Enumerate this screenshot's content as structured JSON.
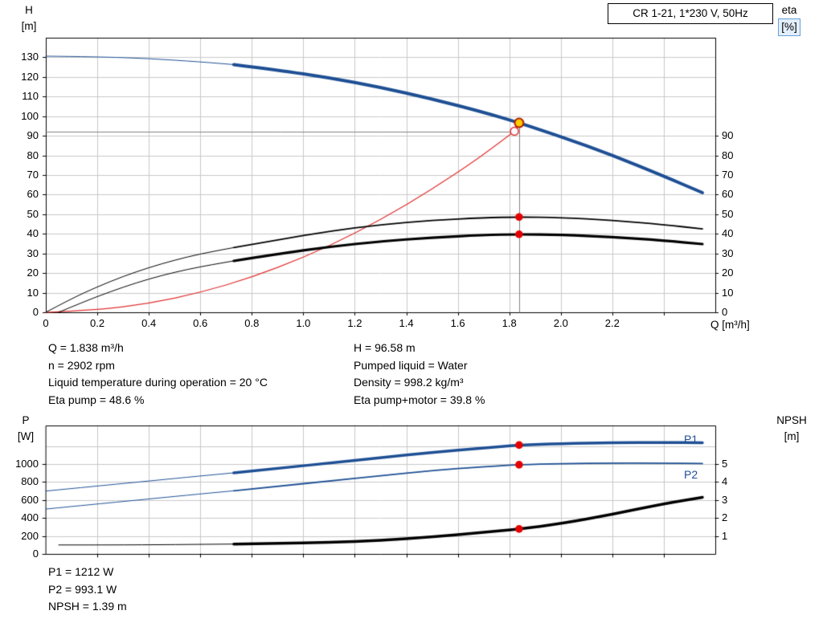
{
  "title_box": "CR 1-21, 1*230 V, 50Hz",
  "axes": {
    "top": {
      "left_1": "H",
      "left_2": "[m]",
      "right_1": "eta",
      "right_2": "[%]",
      "x": "Q [m³/h]"
    },
    "bottom": {
      "left_1": "P",
      "left_2": "[W]",
      "right_1": "NPSH",
      "right_2": "[m]",
      "p1": "P1",
      "p2": "P2"
    }
  },
  "info": {
    "left": [
      "Q = 1.838 m³/h",
      "n = 2902 rpm",
      "Liquid temperature during operation = 20 °C",
      "Eta pump = 48.6 %"
    ],
    "right": [
      "H = 96.58 m",
      "Pumped liquid = Water",
      "Density = 998.2 kg/m³",
      "Eta pump+motor = 39.8 %"
    ],
    "bottom": [
      "P1 = 1212 W",
      "P2 = 993.1 W",
      "NPSH = 1.39 m"
    ]
  },
  "colors": {
    "curve_blue": "#1e4f94",
    "curve_black": "#000000",
    "curve_red": "#e03030",
    "duty_fill": "#ffcc00",
    "duty_stroke": "#b22000",
    "dot_red": "#e40000",
    "grid": "#c9c9c9",
    "crosshair": "#808080",
    "label_blue": "#1e4f94"
  },
  "chart_data": [
    {
      "type": "line",
      "title": "CR 1-21, 1*230 V, 50Hz — QH and efficiency curves",
      "x": {
        "label": "Q [m³/h]",
        "min": 0,
        "max": 2.6,
        "grid_step": 0.2,
        "tick_labels": [
          "0",
          "0.2",
          "0.4",
          "0.6",
          "0.8",
          "1.0",
          "1.2",
          "1.4",
          "1.6",
          "1.8",
          "2.0",
          "2.2"
        ]
      },
      "y_left": {
        "label": "H [m]",
        "min": 0,
        "max": 140,
        "grid_step": 10,
        "tick_labels": [
          "0",
          "10",
          "20",
          "30",
          "40",
          "50",
          "60",
          "70",
          "80",
          "90",
          "100",
          "110",
          "120",
          "130"
        ]
      },
      "y_right": {
        "label": "eta [%]",
        "min": 0,
        "max": 140,
        "tick_labels": [
          "0",
          "10",
          "20",
          "30",
          "40",
          "50",
          "60",
          "70",
          "80",
          "90"
        ]
      },
      "grid": true,
      "legend": "none",
      "series": [
        {
          "name": "system-curve",
          "axis": "left",
          "color": "#e03030",
          "width": 1.2,
          "points": [
            [
              0,
              0
            ],
            [
              0.2,
              1.1
            ],
            [
              0.4,
              4.5
            ],
            [
              0.6,
              10.0
            ],
            [
              0.8,
              17.8
            ],
            [
              1.0,
              27.9
            ],
            [
              1.2,
              40.1
            ],
            [
              1.4,
              54.6
            ],
            [
              1.6,
              71.3
            ],
            [
              1.7,
              80.5
            ],
            [
              1.82,
              92.3
            ]
          ]
        },
        {
          "name": "eta-pump",
          "axis": "right",
          "color": "#000000",
          "thin": 1,
          "thick": 1.8,
          "thick_from": 0.73,
          "points": [
            [
              0,
              0
            ],
            [
              0.1,
              7
            ],
            [
              0.2,
              13
            ],
            [
              0.3,
              18.3
            ],
            [
              0.4,
              22.8
            ],
            [
              0.5,
              26.6
            ],
            [
              0.6,
              29.8
            ],
            [
              0.73,
              33.0
            ],
            [
              0.9,
              36.9
            ],
            [
              1.1,
              41.3
            ],
            [
              1.3,
              44.7
            ],
            [
              1.5,
              46.9
            ],
            [
              1.7,
              48.2
            ],
            [
              1.838,
              48.6
            ],
            [
              2.0,
              48.3
            ],
            [
              2.2,
              46.9
            ],
            [
              2.4,
              44.7
            ],
            [
              2.55,
              42.5
            ]
          ]
        },
        {
          "name": "eta-pump-motor",
          "axis": "right",
          "color": "#000000",
          "thin": 1,
          "thick": 3.2,
          "thick_from": 0.73,
          "points": [
            [
              0.05,
              0
            ],
            [
              0.15,
              5.5
            ],
            [
              0.25,
              10.5
            ],
            [
              0.35,
              15
            ],
            [
              0.45,
              18.8
            ],
            [
              0.55,
              21.9
            ],
            [
              0.65,
              24.4
            ],
            [
              0.73,
              26.2
            ],
            [
              0.9,
              29.8
            ],
            [
              1.1,
              33.4
            ],
            [
              1.3,
              36.2
            ],
            [
              1.5,
              38.1
            ],
            [
              1.7,
              39.4
            ],
            [
              1.838,
              39.8
            ],
            [
              2.0,
              39.5
            ],
            [
              2.2,
              38.4
            ],
            [
              2.4,
              36.6
            ],
            [
              2.55,
              34.8
            ]
          ]
        },
        {
          "name": "head-curve",
          "axis": "left",
          "color": "#1e4f94",
          "thin": 1,
          "thick": 4,
          "thick_from": 0.73,
          "points": [
            [
              0,
              130.6
            ],
            [
              0.2,
              130.3
            ],
            [
              0.4,
              129.4
            ],
            [
              0.6,
              127.7
            ],
            [
              0.73,
              126.3
            ],
            [
              0.9,
              123.5
            ],
            [
              1.1,
              119.6
            ],
            [
              1.3,
              114.7
            ],
            [
              1.5,
              108.8
            ],
            [
              1.7,
              102.0
            ],
            [
              1.838,
              96.58
            ],
            [
              2.0,
              89.6
            ],
            [
              2.2,
              80.1
            ],
            [
              2.4,
              69.4
            ],
            [
              2.55,
              61.0
            ]
          ]
        }
      ],
      "crosshair": {
        "q": 1.838,
        "top": 96.58,
        "h_line": 92.3,
        "h_line_end_q": 1.82
      },
      "markers": [
        {
          "name": "requested-duty-point",
          "q": 1.82,
          "value": 92.3,
          "axis": "left",
          "style": "open-red"
        },
        {
          "name": "duty-point",
          "q": 1.838,
          "value": 96.58,
          "axis": "left",
          "style": "duty"
        },
        {
          "name": "eta-pump-point",
          "q": 1.838,
          "value": 48.6,
          "axis": "right",
          "style": "red-dot"
        },
        {
          "name": "eta-pump-motor-point",
          "q": 1.838,
          "value": 39.8,
          "axis": "right",
          "style": "red-dot"
        }
      ]
    },
    {
      "type": "line",
      "title": "Power and NPSH curves",
      "x": {
        "label": "",
        "min": 0,
        "max": 2.6,
        "grid_step": 0.2,
        "tick_labels": []
      },
      "y_left": {
        "label": "P [W]",
        "min": 0,
        "max": 1430,
        "grid_step": 200,
        "tick_labels": [
          "0",
          "200",
          "400",
          "600",
          "800",
          "1000"
        ]
      },
      "y_right": {
        "label": "NPSH [m]",
        "min": 0,
        "max": 7.15,
        "tick_labels": [
          "1",
          "2",
          "3",
          "4",
          "5"
        ]
      },
      "grid": true,
      "legend": "P1 and P2 labels at right",
      "series": [
        {
          "name": "p2-curve",
          "axis": "left",
          "color": "#1e4f94",
          "thin": 1,
          "thick": 1.8,
          "thick_from": 0.73,
          "points": [
            [
              0,
              500
            ],
            [
              0.2,
              556
            ],
            [
              0.4,
              612
            ],
            [
              0.6,
              668
            ],
            [
              0.73,
              703
            ],
            [
              0.9,
              752
            ],
            [
              1.1,
              812
            ],
            [
              1.3,
              872
            ],
            [
              1.5,
              928
            ],
            [
              1.7,
              972
            ],
            [
              1.838,
              993
            ],
            [
              2.0,
              1006
            ],
            [
              2.2,
              1012
            ],
            [
              2.4,
              1010
            ],
            [
              2.55,
              1006
            ]
          ]
        },
        {
          "name": "p1-curve",
          "axis": "left",
          "color": "#1e4f94",
          "thin": 1,
          "thick": 3.5,
          "thick_from": 0.73,
          "points": [
            [
              0,
              700
            ],
            [
              0.2,
              756
            ],
            [
              0.4,
              812
            ],
            [
              0.6,
              868
            ],
            [
              0.73,
              903
            ],
            [
              0.9,
              952
            ],
            [
              1.1,
              1012
            ],
            [
              1.3,
              1072
            ],
            [
              1.5,
              1130
            ],
            [
              1.7,
              1180
            ],
            [
              1.838,
              1212
            ],
            [
              2.0,
              1228
            ],
            [
              2.2,
              1238
            ],
            [
              2.4,
              1240
            ],
            [
              2.55,
              1238
            ]
          ]
        },
        {
          "name": "npsh-curve",
          "axis": "right",
          "color": "#000000",
          "thin": 1,
          "thick": 3.5,
          "thick_from": 0.73,
          "points": [
            [
              0.05,
              0.5
            ],
            [
              0.3,
              0.5
            ],
            [
              0.5,
              0.52
            ],
            [
              0.73,
              0.55
            ],
            [
              0.9,
              0.58
            ],
            [
              1.1,
              0.64
            ],
            [
              1.3,
              0.75
            ],
            [
              1.5,
              0.95
            ],
            [
              1.7,
              1.2
            ],
            [
              1.838,
              1.39
            ],
            [
              2.0,
              1.68
            ],
            [
              2.2,
              2.2
            ],
            [
              2.4,
              2.8
            ],
            [
              2.55,
              3.15
            ]
          ]
        }
      ],
      "markers": [
        {
          "name": "p1-duty-point",
          "q": 1.838,
          "value": 1212,
          "axis": "left",
          "style": "red-dot"
        },
        {
          "name": "p2-duty-point",
          "q": 1.838,
          "value": 993.1,
          "axis": "left",
          "style": "red-dot"
        },
        {
          "name": "npsh-duty-point",
          "q": 1.838,
          "value": 1.39,
          "axis": "right",
          "style": "red-dot"
        }
      ]
    }
  ]
}
